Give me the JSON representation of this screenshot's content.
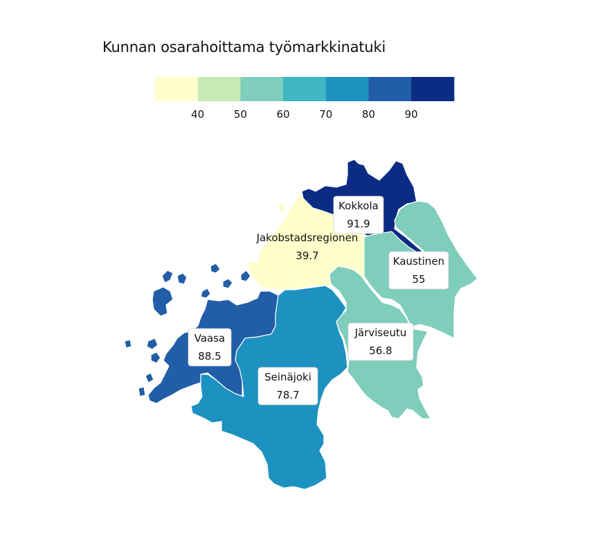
{
  "title": "Kunnan osarahoittama työmarkkinatuki",
  "legend": {
    "colors": [
      "#ffffcc",
      "#c7e9b4",
      "#7fcdbb",
      "#41b6c4",
      "#1d91c0",
      "#225ea8",
      "#0c2c84"
    ],
    "ticks": [
      "40",
      "50",
      "60",
      "70",
      "80",
      "90"
    ]
  },
  "chart_data": {
    "type": "choropleth",
    "title": "Kunnan osarahoittama työmarkkinatuki",
    "regions": [
      {
        "name": "Kokkola",
        "value": 91.9
      },
      {
        "name": "Jakobstadsregionen",
        "value": 39.7
      },
      {
        "name": "Kaustinen",
        "value": 55
      },
      {
        "name": "Järviseutu",
        "value": 56.8
      },
      {
        "name": "Vaasa",
        "value": 88.5
      },
      {
        "name": "Seinäjoki",
        "value": 78.7
      }
    ]
  }
}
